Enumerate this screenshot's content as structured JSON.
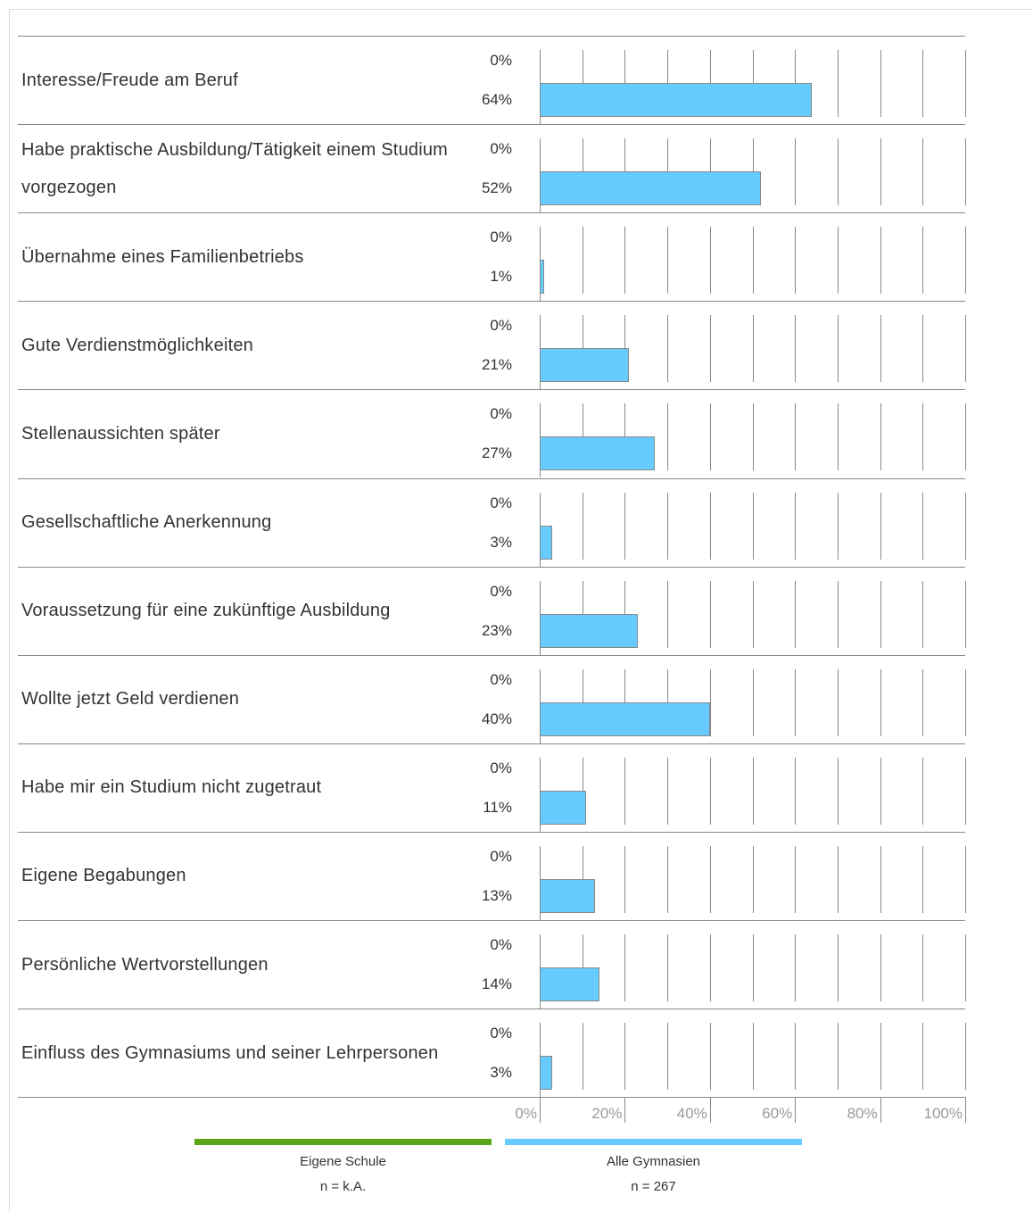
{
  "chart_data": {
    "type": "bar",
    "categories": [
      "Interesse/Freude am Beruf",
      "Habe praktische Ausbildung/Tätigkeit einem Studium vorgezogen",
      "Übernahme eines Familienbetriebs",
      "Gute Verdienstmöglichkeiten",
      "Stellenaussichten später",
      "Gesellschaftliche Anerkennung",
      "Voraussetzung für eine zukünftige Ausbildung",
      "Wollte jetzt Geld verdienen",
      "Habe mir ein Studium nicht zugetraut",
      "Eigene Begabungen",
      "Persönliche Wertvorstellungen",
      "Einfluss des Gymnasiums und seiner Lehrpersonen"
    ],
    "series": [
      {
        "name": "Eigene Schule",
        "note": "n = k.A.",
        "color": "#5aa51a",
        "values": [
          0,
          0,
          0,
          0,
          0,
          0,
          0,
          0,
          0,
          0,
          0,
          0
        ],
        "value_labels": [
          "0%",
          "0%",
          "0%",
          "0%",
          "0%",
          "0%",
          "0%",
          "0%",
          "0%",
          "0%",
          "0%",
          "0%"
        ]
      },
      {
        "name": "Alle Gymnasien",
        "note": "n = 267",
        "color": "#66ccff",
        "values": [
          64,
          52,
          1,
          21,
          27,
          3,
          23,
          40,
          11,
          13,
          14,
          3
        ],
        "value_labels": [
          "64%",
          "52%",
          "1%",
          "21%",
          "27%",
          "3%",
          "23%",
          "40%",
          "11%",
          "13%",
          "14%",
          "3%"
        ]
      }
    ],
    "xlim": [
      0,
      100
    ],
    "xticks": [
      {
        "value": 0,
        "label": "0%"
      },
      {
        "value": 20,
        "label": "20%"
      },
      {
        "value": 40,
        "label": "40%"
      },
      {
        "value": 60,
        "label": "60%"
      },
      {
        "value": 80,
        "label": "80%"
      },
      {
        "value": 100,
        "label": "100%"
      }
    ],
    "xminor_ticks": [
      10,
      30,
      50,
      70,
      90
    ],
    "grid": true
  }
}
